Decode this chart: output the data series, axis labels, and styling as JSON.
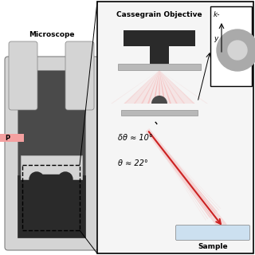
{
  "microscope_label": "Microscope",
  "cassegrain_label": "Cassegrain Objective",
  "sample_label": "Sample",
  "delta_theta_label": "δθ ≈ 10°",
  "theta_label": "θ ≈ 22°",
  "k_label": "k-",
  "y_label": "y",
  "p_label": "P",
  "pink": "#f4a0a0",
  "red": "#cc2222",
  "dark_gray": "#4a4a4a",
  "med_gray": "#808080",
  "light_gray": "#b8b8b8",
  "lighter_gray": "#d4d4d4",
  "darkest": "#2a2a2a",
  "circle_gray": "#aaaaaa",
  "sample_blue": "#cce0f0",
  "bg_detail": "#f5f5f5"
}
